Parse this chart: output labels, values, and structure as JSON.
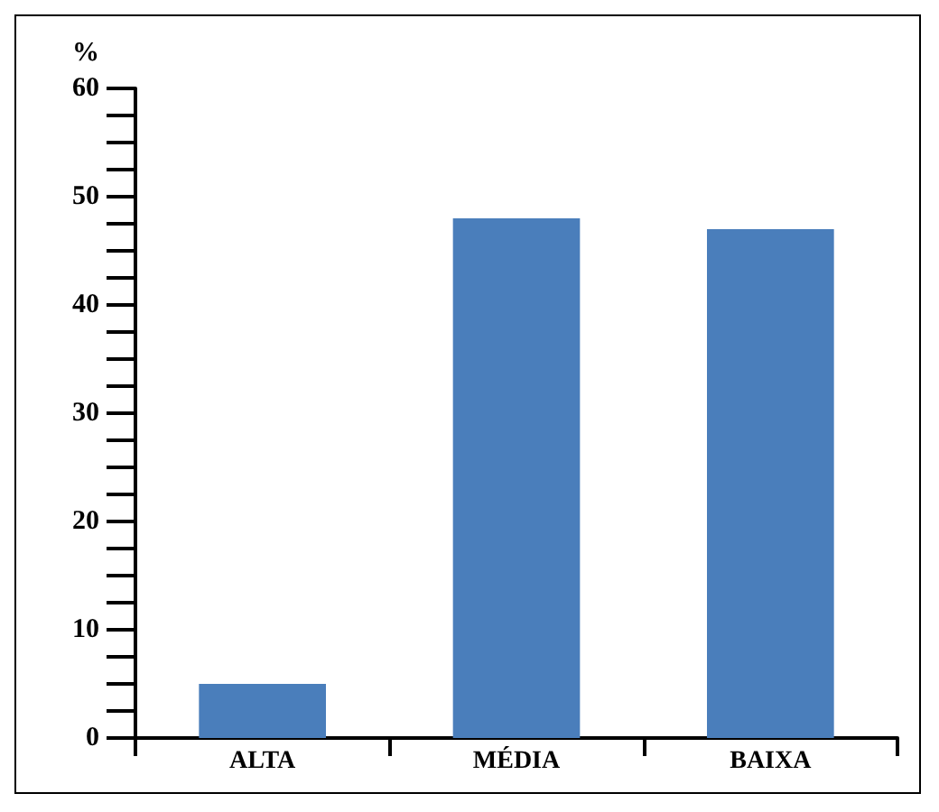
{
  "chart_data": {
    "type": "bar",
    "ylabel": "%",
    "categories": [
      "ALTA",
      "MÉDIA",
      "BAIXA"
    ],
    "values": [
      5,
      48,
      47
    ],
    "color": "#4a7ebb",
    "ylim": [
      0,
      60
    ],
    "yticks": [
      0,
      {
        "value": 2.5,
        "label": null
      },
      {
        "value": 5,
        "label": null
      },
      {
        "value": 7.5,
        "label": null
      },
      10,
      {
        "value": 12.5,
        "label": null
      },
      {
        "value": 15,
        "label": null
      },
      {
        "value": 17.5,
        "label": null
      },
      20,
      {
        "value": 22.5,
        "label": null
      },
      {
        "value": 25,
        "label": null
      },
      {
        "value": 27.5,
        "label": null
      },
      30,
      {
        "value": 32.5,
        "label": null
      },
      {
        "value": 35,
        "label": null
      },
      {
        "value": 37.5,
        "label": null
      },
      40,
      {
        "value": 42.5,
        "label": null
      },
      {
        "value": 45,
        "label": null
      },
      {
        "value": 47.5,
        "label": null
      },
      50,
      {
        "value": 52.5,
        "label": null
      },
      {
        "value": 55,
        "label": null
      },
      {
        "value": 57.5,
        "label": null
      },
      60
    ],
    "grid": false
  }
}
